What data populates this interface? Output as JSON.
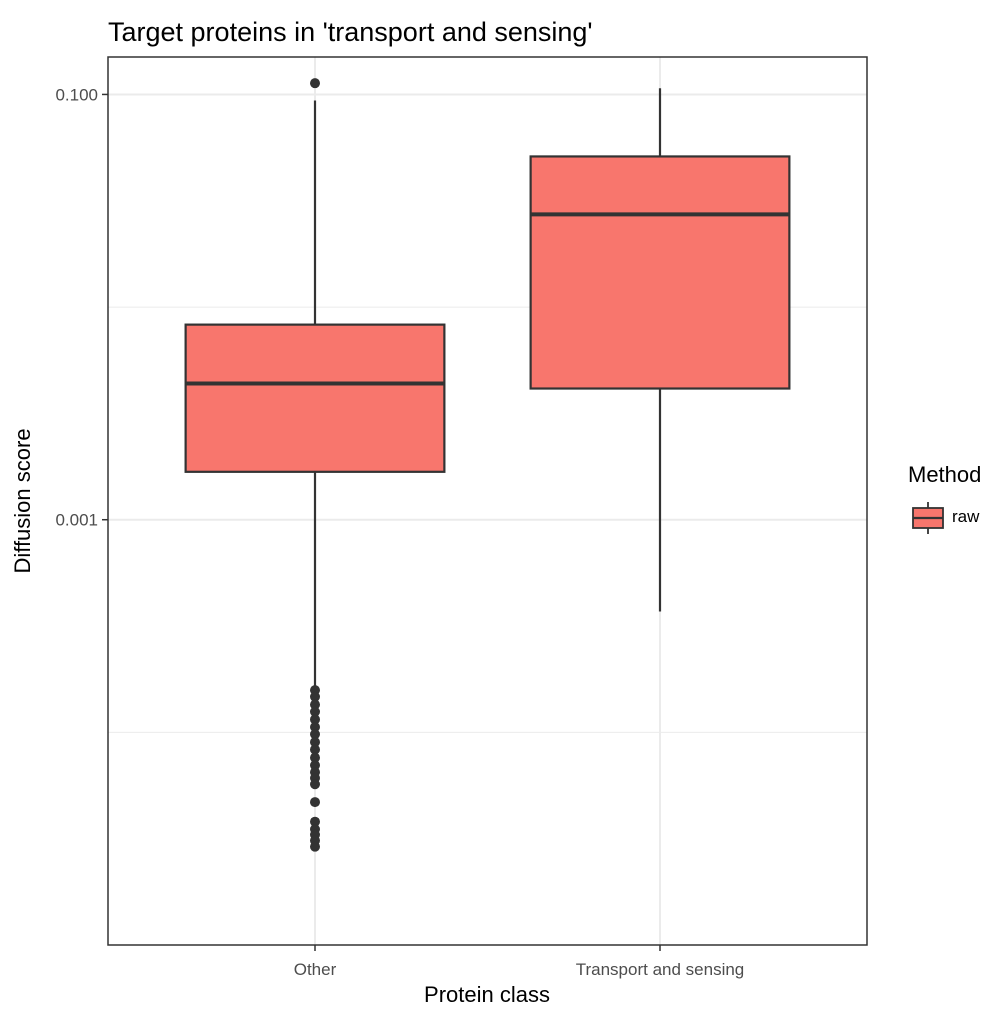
{
  "chart_data": {
    "type": "boxplot",
    "title": "Target proteins in 'transport and sensing'",
    "xlabel": "Protein class",
    "ylabel": "Diffusion score",
    "y_scale": "log10",
    "ylim": [
      1e-05,
      0.15
    ],
    "y_ticks": [
      0.1,
      0.001
    ],
    "y_tick_labels": [
      "0.100",
      "0.001"
    ],
    "y_minor_gridlines": [
      0.01,
      0.0001
    ],
    "categories": [
      "Other",
      "Transport and sensing"
    ],
    "grid": true,
    "legend": {
      "title": "Method",
      "position": "right",
      "entries": [
        {
          "label": "raw",
          "color": "#F8766D"
        }
      ]
    },
    "colors": {
      "fill": "#F8766D",
      "stroke": "#333333",
      "grid": "#ebebeb",
      "panel_border": "#333333"
    },
    "series": [
      {
        "name": "raw",
        "boxes": [
          {
            "category": "Other",
            "whisker_low": 0.000158,
            "q1": 0.00168,
            "median": 0.00437,
            "q3": 0.00827,
            "whisker_high": 0.0937,
            "outliers": [
              0.113,
              0.000158,
              0.000147,
              0.000135,
              0.000125,
              0.000115,
              0.000106,
              9.8e-05,
              9e-05,
              8.3e-05,
              7.6e-05,
              7e-05,
              6.5e-05,
              6.1e-05,
              5.7e-05,
              4.7e-05,
              3.8e-05,
              3.5e-05,
              3.3e-05,
              3.1e-05,
              2.9e-05
            ]
          },
          {
            "category": "Transport and sensing",
            "whisker_low": 0.00037,
            "q1": 0.00414,
            "median": 0.0273,
            "q3": 0.0511,
            "whisker_high": 0.107,
            "outliers": []
          }
        ]
      }
    ]
  }
}
